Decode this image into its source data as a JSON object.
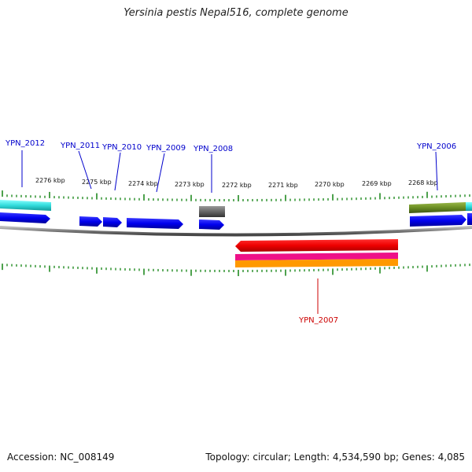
{
  "title": "Yersinia pestis Nepal516, complete genome",
  "footer": {
    "accession": "Accession: NC_008149",
    "summary": "Topology: circular; Length: 4,534,590 bp; Genes: 4,085"
  },
  "scale_labels": [
    "2276 kbp",
    "2275 kbp",
    "2274 kbp",
    "2273 kbp",
    "2272 kbp",
    "2271 kbp",
    "2270 kbp",
    "2269 kbp",
    "2268 kbp"
  ],
  "gene_labels": {
    "ypn2012": "YPN_2012",
    "ypn2011": "YPN_2011",
    "ypn2010": "YPN_2010",
    "ypn2009": "YPN_2009",
    "ypn2008": "YPN_2008",
    "ypn2006": "YPN_2006",
    "ypn2007": "YPN_2007"
  },
  "colors": {
    "forward_gene": "#0000ee",
    "reverse_gene": "#ee0000",
    "label_forward": "#0000cc",
    "label_reverse": "#cc0000",
    "cyan_feature": "#33dddd",
    "olive_feature": "#6b8e23",
    "grey_feature": "#666666",
    "magenta_feature": "#ee1188",
    "orange_feature": "#ff9900",
    "ticks": "#228b22",
    "backbone": "#777777"
  }
}
